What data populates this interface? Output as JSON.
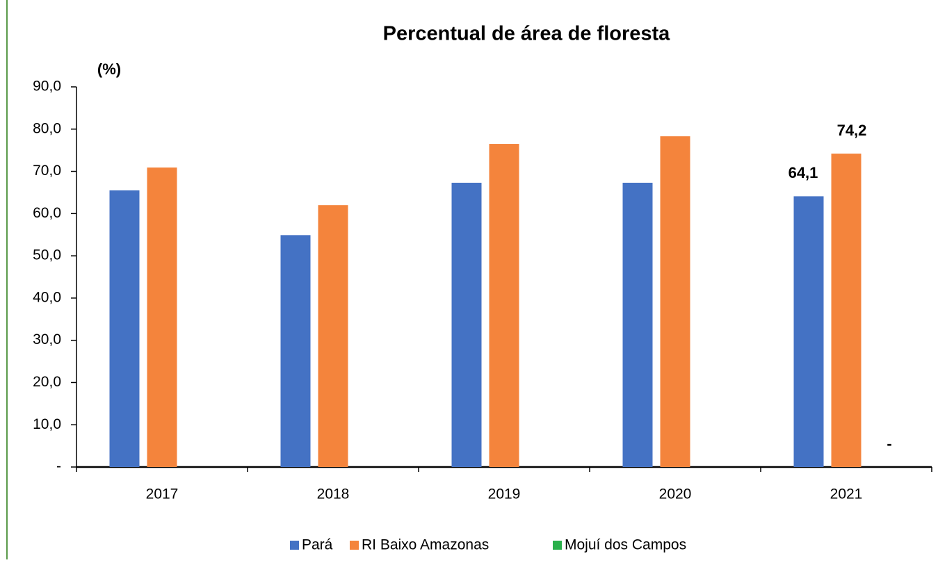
{
  "chart_data": {
    "type": "bar",
    "title": "Percentual de área de floresta",
    "y_label": "(%)",
    "categories": [
      "2017",
      "2018",
      "2019",
      "2020",
      "2021"
    ],
    "series": [
      {
        "name": "Pará",
        "color": "#4472c4",
        "values": [
          65.5,
          54.9,
          67.3,
          67.3,
          64.1
        ],
        "value_labels": [
          null,
          null,
          null,
          null,
          "64,1"
        ]
      },
      {
        "name": "RI Baixo Amazonas",
        "color": "#f4843c",
        "values": [
          70.9,
          62.0,
          76.5,
          78.3,
          74.2
        ],
        "value_labels": [
          null,
          null,
          null,
          null,
          "74,2"
        ]
      },
      {
        "name": "Mojuí dos Campos",
        "color": "#2ab04b",
        "values": [
          null,
          null,
          null,
          null,
          0
        ],
        "value_labels": [
          null,
          null,
          null,
          null,
          "-"
        ]
      }
    ],
    "ylim": [
      0,
      90
    ],
    "yticks": [
      {
        "value": 0,
        "label": "-"
      },
      {
        "value": 10,
        "label": "10,0"
      },
      {
        "value": 20,
        "label": "20,0"
      },
      {
        "value": 30,
        "label": "30,0"
      },
      {
        "value": 40,
        "label": "40,0"
      },
      {
        "value": 50,
        "label": "50,0"
      },
      {
        "value": 60,
        "label": "60,0"
      },
      {
        "value": 70,
        "label": "70,0"
      },
      {
        "value": 80,
        "label": "80,0"
      },
      {
        "value": 90,
        "label": "90,0"
      }
    ],
    "legend": "bottom"
  }
}
